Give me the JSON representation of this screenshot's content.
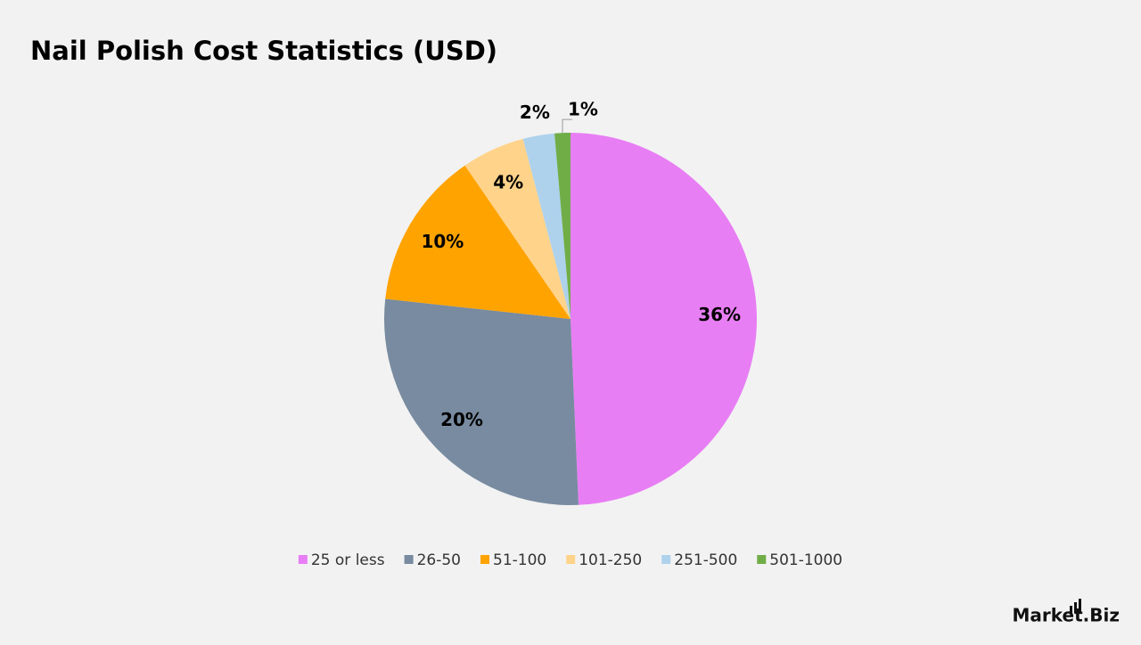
{
  "chart_data": {
    "type": "pie",
    "title": "Nail Polish Cost Statistics (USD)",
    "categories": [
      "25 or less",
      "26-50",
      "51-100",
      "101-250",
      "251-500",
      "501-1000"
    ],
    "values": [
      36,
      20,
      10,
      4,
      2,
      1
    ],
    "value_labels": [
      "36%",
      "20%",
      "10%",
      "4%",
      "2%",
      "1%"
    ],
    "colors": [
      "#e87ef4",
      "#788ba0",
      "#ffa300",
      "#ffd38a",
      "#aed2ec",
      "#70ad47"
    ],
    "legend": "bottom"
  },
  "watermark": "Market.Biz"
}
